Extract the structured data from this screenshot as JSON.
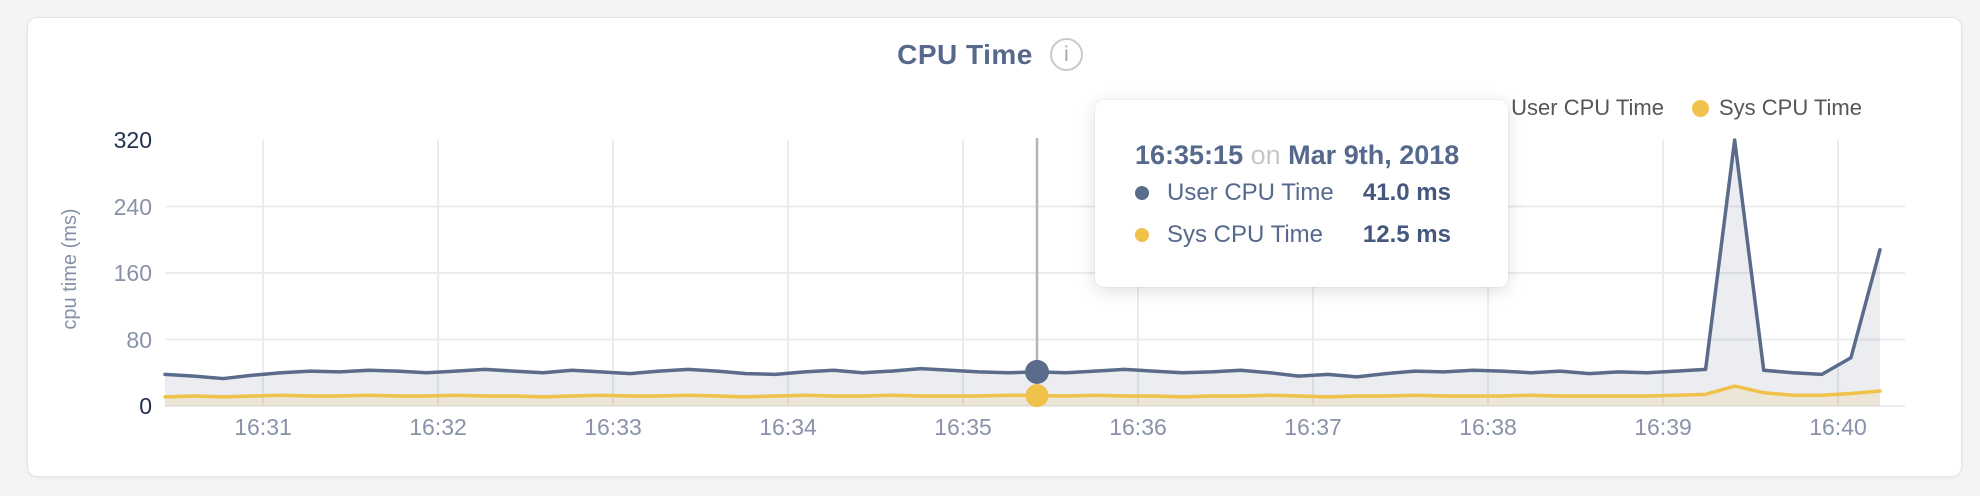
{
  "header": {
    "title": "CPU Time",
    "info_glyph": "i"
  },
  "legend": [
    {
      "label": "User CPU Time",
      "color": "#5b6b8c"
    },
    {
      "label": "Sys CPU Time",
      "color": "#f0c14b"
    }
  ],
  "axes": {
    "y_title": "cpu time (ms)"
  },
  "tooltip": {
    "time": "16:35:15",
    "connector": "on",
    "date": "Mar 9th, 2018",
    "rows": [
      {
        "label": "User CPU Time",
        "value": "41.0 ms",
        "color": "#5b6b8c"
      },
      {
        "label": "Sys CPU Time",
        "value": "12.5 ms",
        "color": "#f0c14b"
      }
    ]
  },
  "chart_data": {
    "type": "area",
    "title": "CPU Time",
    "xlabel": "",
    "ylabel": "cpu time (ms)",
    "ylim": [
      0,
      320
    ],
    "y_ticks": [
      0,
      80,
      160,
      240,
      320
    ],
    "x_ticks": [
      "16:31",
      "16:32",
      "16:33",
      "16:34",
      "16:35",
      "16:36",
      "16:37",
      "16:38",
      "16:39",
      "16:40"
    ],
    "grid": true,
    "legend_position": "top-right",
    "hover_index": 30,
    "series": [
      {
        "name": "User CPU Time",
        "color": "#5b6b8c",
        "fill": "rgba(91,107,140,0.12)",
        "values": [
          38,
          36,
          33,
          37,
          40,
          42,
          41,
          43,
          42,
          40,
          42,
          44,
          42,
          40,
          43,
          41,
          39,
          42,
          44,
          42,
          39,
          38,
          41,
          43,
          40,
          42,
          45,
          43,
          41,
          40,
          41,
          40,
          42,
          44,
          42,
          40,
          41,
          43,
          40,
          36,
          38,
          35,
          39,
          42,
          41,
          43,
          42,
          40,
          42,
          39,
          41,
          40,
          42,
          44,
          320,
          43,
          40,
          38,
          58,
          188
        ]
      },
      {
        "name": "Sys CPU Time",
        "color": "#f0c14b",
        "fill": "rgba(240,193,75,0.16)",
        "values": [
          11,
          12,
          11,
          12,
          13,
          12,
          12,
          13,
          12,
          12,
          13,
          12,
          12,
          11,
          12,
          13,
          12,
          12,
          13,
          12,
          11,
          12,
          13,
          12,
          12,
          13,
          12,
          12,
          12,
          13,
          12.5,
          12,
          13,
          12,
          12,
          11,
          12,
          12,
          13,
          12,
          11,
          12,
          12,
          13,
          12,
          12,
          12,
          13,
          12,
          12,
          12,
          12,
          13,
          14,
          24,
          16,
          13,
          13,
          15,
          18
        ]
      }
    ]
  }
}
